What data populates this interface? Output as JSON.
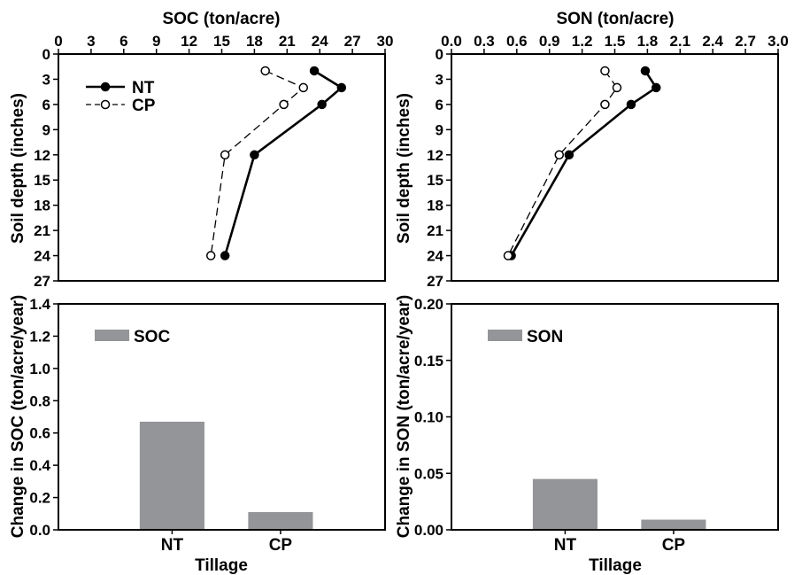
{
  "chart_data": [
    {
      "id": "soc_profile",
      "type": "line",
      "title": "SOC (ton/acre)",
      "xlabel": "SOC (ton/acre)",
      "ylabel": "Soil depth (inches)",
      "xlim": [
        0,
        30
      ],
      "ylim": [
        0,
        27
      ],
      "x_axis_position": "top",
      "y_inverted": true,
      "xticks": [
        "0",
        "3",
        "6",
        "9",
        "12",
        "15",
        "18",
        "21",
        "24",
        "27",
        "30"
      ],
      "yticks": [
        "0",
        "3",
        "6",
        "9",
        "12",
        "15",
        "18",
        "21",
        "24",
        "27"
      ],
      "legend_position": "top-left",
      "series": [
        {
          "name": "NT",
          "style": "solid",
          "marker": "filled-circle",
          "points": [
            {
              "x": 23.5,
              "y": 2
            },
            {
              "x": 26.0,
              "y": 4
            },
            {
              "x": 24.2,
              "y": 6
            },
            {
              "x": 18.0,
              "y": 12
            },
            {
              "x": 15.3,
              "y": 24
            }
          ]
        },
        {
          "name": "CP",
          "style": "dashed",
          "marker": "open-circle",
          "points": [
            {
              "x": 19.0,
              "y": 2
            },
            {
              "x": 22.5,
              "y": 4
            },
            {
              "x": 20.7,
              "y": 6
            },
            {
              "x": 15.3,
              "y": 12
            },
            {
              "x": 14.0,
              "y": 24
            }
          ]
        }
      ]
    },
    {
      "id": "son_profile",
      "type": "line",
      "title": "SON (ton/acre)",
      "xlabel": "SON (ton/acre)",
      "ylabel": "Soil depth (inches)",
      "xlim": [
        0,
        3.0
      ],
      "ylim": [
        0,
        27
      ],
      "x_axis_position": "top",
      "y_inverted": true,
      "xticks": [
        "0.0",
        "0.3",
        "0.6",
        "0.9",
        "1.2",
        "1.5",
        "1.8",
        "2.1",
        "2.4",
        "2.7",
        "3.0"
      ],
      "yticks": [
        "0",
        "3",
        "6",
        "9",
        "12",
        "15",
        "18",
        "21",
        "24",
        "27"
      ],
      "series": [
        {
          "name": "NT",
          "style": "solid",
          "marker": "filled-circle",
          "points": [
            {
              "x": 1.78,
              "y": 2
            },
            {
              "x": 1.88,
              "y": 4
            },
            {
              "x": 1.65,
              "y": 6
            },
            {
              "x": 1.08,
              "y": 12
            },
            {
              "x": 0.55,
              "y": 24
            }
          ]
        },
        {
          "name": "CP",
          "style": "dashed",
          "marker": "open-circle",
          "points": [
            {
              "x": 1.41,
              "y": 2
            },
            {
              "x": 1.52,
              "y": 4
            },
            {
              "x": 1.41,
              "y": 6
            },
            {
              "x": 0.99,
              "y": 12
            },
            {
              "x": 0.52,
              "y": 24
            }
          ]
        }
      ]
    },
    {
      "id": "soc_change",
      "type": "bar",
      "xlabel": "Tillage",
      "ylabel": "Change in SOC (ton/acre/year)",
      "categories": [
        "NT",
        "CP"
      ],
      "values": [
        0.67,
        0.11
      ],
      "ylim": [
        0,
        1.4
      ],
      "yticks": [
        "0.0",
        "0.2",
        "0.4",
        "0.6",
        "0.8",
        "1.0",
        "1.2",
        "1.4"
      ],
      "legend": "SOC",
      "legend_position": "top-left",
      "color": "#939598"
    },
    {
      "id": "son_change",
      "type": "bar",
      "xlabel": "Tillage",
      "ylabel": "Change in SON (ton/acre/year)",
      "categories": [
        "NT",
        "CP"
      ],
      "values": [
        0.045,
        0.009
      ],
      "ylim": [
        0,
        0.2
      ],
      "yticks": [
        "0.00",
        "0.05",
        "0.10",
        "0.15",
        "0.20"
      ],
      "legend": "SON",
      "legend_position": "top-left",
      "color": "#939598"
    }
  ]
}
